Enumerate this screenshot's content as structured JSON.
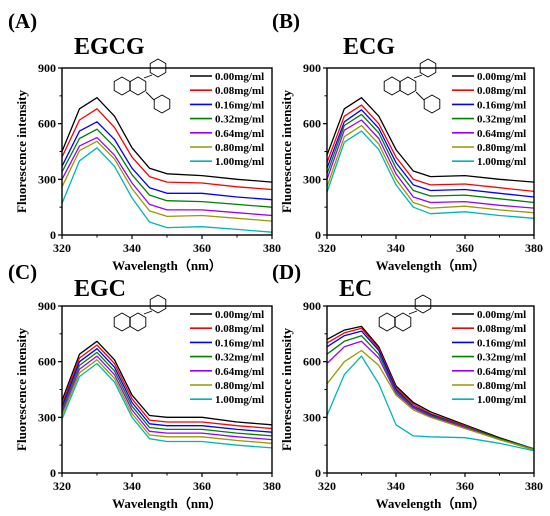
{
  "chart_data": [
    {
      "type": "line",
      "panel_label": "(A)",
      "title": "EGCG",
      "xlabel": "Wavelength（nm）",
      "ylabel": "Fluorescence intensity",
      "xlim": [
        320,
        380
      ],
      "ylim": [
        0,
        900
      ],
      "xticks": [
        320,
        340,
        360,
        380
      ],
      "yticks": [
        0,
        300,
        600,
        900
      ],
      "grid": false,
      "legend": "top-right",
      "x": [
        320,
        325,
        330,
        335,
        340,
        345,
        350,
        360,
        370,
        380
      ],
      "series": [
        {
          "name": "0.00mg/ml",
          "color": "#000000",
          "values": [
            450,
            680,
            740,
            640,
            470,
            360,
            330,
            320,
            300,
            285
          ]
        },
        {
          "name": "0.08mg/ml",
          "color": "#ff0000",
          "values": [
            420,
            620,
            680,
            580,
            420,
            315,
            285,
            280,
            260,
            245
          ]
        },
        {
          "name": "0.16mg/ml",
          "color": "#0000ff",
          "values": [
            370,
            560,
            610,
            515,
            360,
            255,
            225,
            225,
            205,
            190
          ]
        },
        {
          "name": "0.32mg/ml",
          "color": "#008000",
          "values": [
            340,
            520,
            570,
            475,
            325,
            215,
            185,
            180,
            165,
            150
          ]
        },
        {
          "name": "0.64mg/ml",
          "color": "#9900ff",
          "values": [
            300,
            480,
            525,
            430,
            280,
            165,
            135,
            135,
            120,
            105
          ]
        },
        {
          "name": "0.80mg/ml",
          "color": "#999900",
          "values": [
            260,
            455,
            505,
            410,
            250,
            130,
            100,
            105,
            90,
            75
          ]
        },
        {
          "name": "1.00mg/ml",
          "color": "#00b5b5",
          "values": [
            170,
            400,
            470,
            370,
            200,
            70,
            40,
            45,
            30,
            15
          ]
        }
      ]
    },
    {
      "type": "line",
      "panel_label": "(B)",
      "title": "ECG",
      "xlabel": "Wavelength（nm）",
      "ylabel": "Fluorescence intensity",
      "xlim": [
        320,
        380
      ],
      "ylim": [
        0,
        900
      ],
      "xticks": [
        320,
        340,
        360,
        380
      ],
      "yticks": [
        0,
        300,
        600,
        900
      ],
      "grid": false,
      "legend": "top-right",
      "x": [
        320,
        325,
        330,
        335,
        340,
        345,
        350,
        360,
        370,
        380
      ],
      "series": [
        {
          "name": "0.00mg/ml",
          "color": "#000000",
          "values": [
            430,
            680,
            740,
            640,
            460,
            345,
            315,
            320,
            300,
            285
          ]
        },
        {
          "name": "0.08mg/ml",
          "color": "#ff0000",
          "values": [
            390,
            640,
            700,
            600,
            420,
            300,
            270,
            275,
            255,
            235
          ]
        },
        {
          "name": "0.16mg/ml",
          "color": "#0000ff",
          "values": [
            360,
            610,
            675,
            575,
            390,
            270,
            240,
            245,
            225,
            205
          ]
        },
        {
          "name": "0.32mg/ml",
          "color": "#008000",
          "values": [
            330,
            590,
            650,
            550,
            360,
            240,
            210,
            215,
            195,
            175
          ]
        },
        {
          "name": "0.64mg/ml",
          "color": "#9900ff",
          "values": [
            300,
            565,
            620,
            520,
            330,
            205,
            175,
            180,
            160,
            145
          ]
        },
        {
          "name": "0.80mg/ml",
          "color": "#999900",
          "values": [
            260,
            530,
            590,
            490,
            300,
            175,
            145,
            155,
            135,
            120
          ]
        },
        {
          "name": "1.00mg/ml",
          "color": "#00b5b5",
          "values": [
            230,
            500,
            560,
            460,
            270,
            150,
            115,
            125,
            105,
            90
          ]
        }
      ]
    },
    {
      "type": "line",
      "panel_label": "(C)",
      "title": "EGC",
      "xlabel": "Wavelength（nm）",
      "ylabel": "Fluorescence intensity",
      "xlim": [
        320,
        380
      ],
      "ylim": [
        0,
        900
      ],
      "xticks": [
        320,
        340,
        360,
        380
      ],
      "yticks": [
        0,
        300,
        600,
        900
      ],
      "grid": false,
      "legend": "top-right",
      "x": [
        320,
        325,
        330,
        335,
        340,
        345,
        350,
        360,
        370,
        380
      ],
      "series": [
        {
          "name": "0.00mg/ml",
          "color": "#000000",
          "values": [
            390,
            640,
            710,
            610,
            420,
            310,
            300,
            300,
            275,
            260
          ]
        },
        {
          "name": "0.08mg/ml",
          "color": "#ff0000",
          "values": [
            370,
            620,
            690,
            590,
            400,
            285,
            275,
            275,
            255,
            240
          ]
        },
        {
          "name": "0.16mg/ml",
          "color": "#0000ff",
          "values": [
            355,
            600,
            670,
            570,
            380,
            265,
            255,
            255,
            235,
            220
          ]
        },
        {
          "name": "0.32mg/ml",
          "color": "#008000",
          "values": [
            340,
            580,
            650,
            550,
            360,
            245,
            235,
            235,
            215,
            200
          ]
        },
        {
          "name": "0.64mg/ml",
          "color": "#9900ff",
          "values": [
            325,
            560,
            630,
            530,
            340,
            225,
            215,
            215,
            195,
            180
          ]
        },
        {
          "name": "0.80mg/ml",
          "color": "#999900",
          "values": [
            310,
            540,
            610,
            510,
            320,
            205,
            195,
            195,
            175,
            160
          ]
        },
        {
          "name": "1.00mg/ml",
          "color": "#00b5b5",
          "values": [
            290,
            520,
            590,
            490,
            300,
            185,
            170,
            170,
            150,
            135
          ]
        }
      ]
    },
    {
      "type": "line",
      "panel_label": "(D)",
      "title": "EC",
      "xlabel": "Wavelength（nm）",
      "ylabel": "Fluorescence intensity",
      "xlim": [
        320,
        380
      ],
      "ylim": [
        0,
        900
      ],
      "xticks": [
        320,
        340,
        360,
        380
      ],
      "yticks": [
        0,
        300,
        600,
        900
      ],
      "grid": false,
      "legend": "top-right",
      "x": [
        320,
        325,
        330,
        335,
        340,
        345,
        350,
        360,
        370,
        380
      ],
      "series": [
        {
          "name": "0.00mg/ml",
          "color": "#000000",
          "values": [
            720,
            770,
            790,
            680,
            470,
            380,
            330,
            260,
            190,
            130
          ]
        },
        {
          "name": "0.08mg/ml",
          "color": "#ff0000",
          "values": [
            700,
            755,
            780,
            670,
            460,
            370,
            320,
            255,
            185,
            130
          ]
        },
        {
          "name": "0.16mg/ml",
          "color": "#0000ff",
          "values": [
            680,
            740,
            765,
            660,
            450,
            360,
            315,
            250,
            185,
            130
          ]
        },
        {
          "name": "0.32mg/ml",
          "color": "#008000",
          "values": [
            640,
            710,
            740,
            640,
            440,
            355,
            310,
            250,
            185,
            130
          ]
        },
        {
          "name": "0.64mg/ml",
          "color": "#9900ff",
          "values": [
            590,
            680,
            710,
            620,
            430,
            350,
            305,
            245,
            180,
            125
          ]
        },
        {
          "name": "0.80mg/ml",
          "color": "#999900",
          "values": [
            480,
            600,
            660,
            580,
            420,
            340,
            300,
            240,
            180,
            125
          ]
        },
        {
          "name": "1.00mg/ml",
          "color": "#00b5b5",
          "values": [
            310,
            530,
            630,
            480,
            260,
            200,
            195,
            190,
            160,
            120
          ]
        }
      ]
    }
  ]
}
